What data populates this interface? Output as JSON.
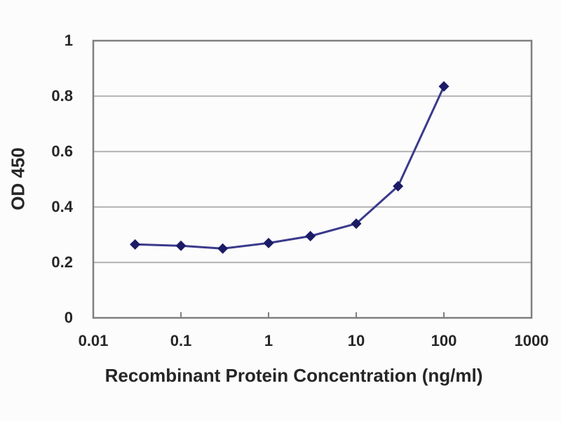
{
  "figure": {
    "background": "#fcfcfc"
  },
  "chart_data": {
    "type": "line",
    "title": "",
    "xlabel": "Recombinant Protein Concentration (ng/ml)",
    "ylabel": "OD 450",
    "x_scale": "log",
    "xlim": [
      0.01,
      1000
    ],
    "ylim": [
      0,
      1
    ],
    "x_ticks": [
      0.01,
      0.1,
      1,
      10,
      100,
      1000
    ],
    "x_tick_labels": [
      "0.01",
      "0.1",
      "1",
      "10",
      "100",
      "1000"
    ],
    "y_ticks": [
      0,
      0.2,
      0.4,
      0.6,
      0.8,
      1
    ],
    "y_tick_labels": [
      "0",
      "0.2",
      "0.4",
      "0.6",
      "0.8",
      "1"
    ],
    "grid": "horizontal-only",
    "legend_position": "none",
    "colors": {
      "axis": "#7f7f7f",
      "gridline": "#b9b9b9",
      "text": "#262626",
      "series_line": "#3a3a8c",
      "series_marker": "#1b1b66"
    },
    "series": [
      {
        "name": "OD 450",
        "marker": "diamond",
        "x": [
          0.03,
          0.1,
          0.3,
          1,
          3,
          10,
          30,
          100
        ],
        "y": [
          0.265,
          0.26,
          0.25,
          0.27,
          0.295,
          0.34,
          0.475,
          0.835
        ]
      }
    ]
  }
}
